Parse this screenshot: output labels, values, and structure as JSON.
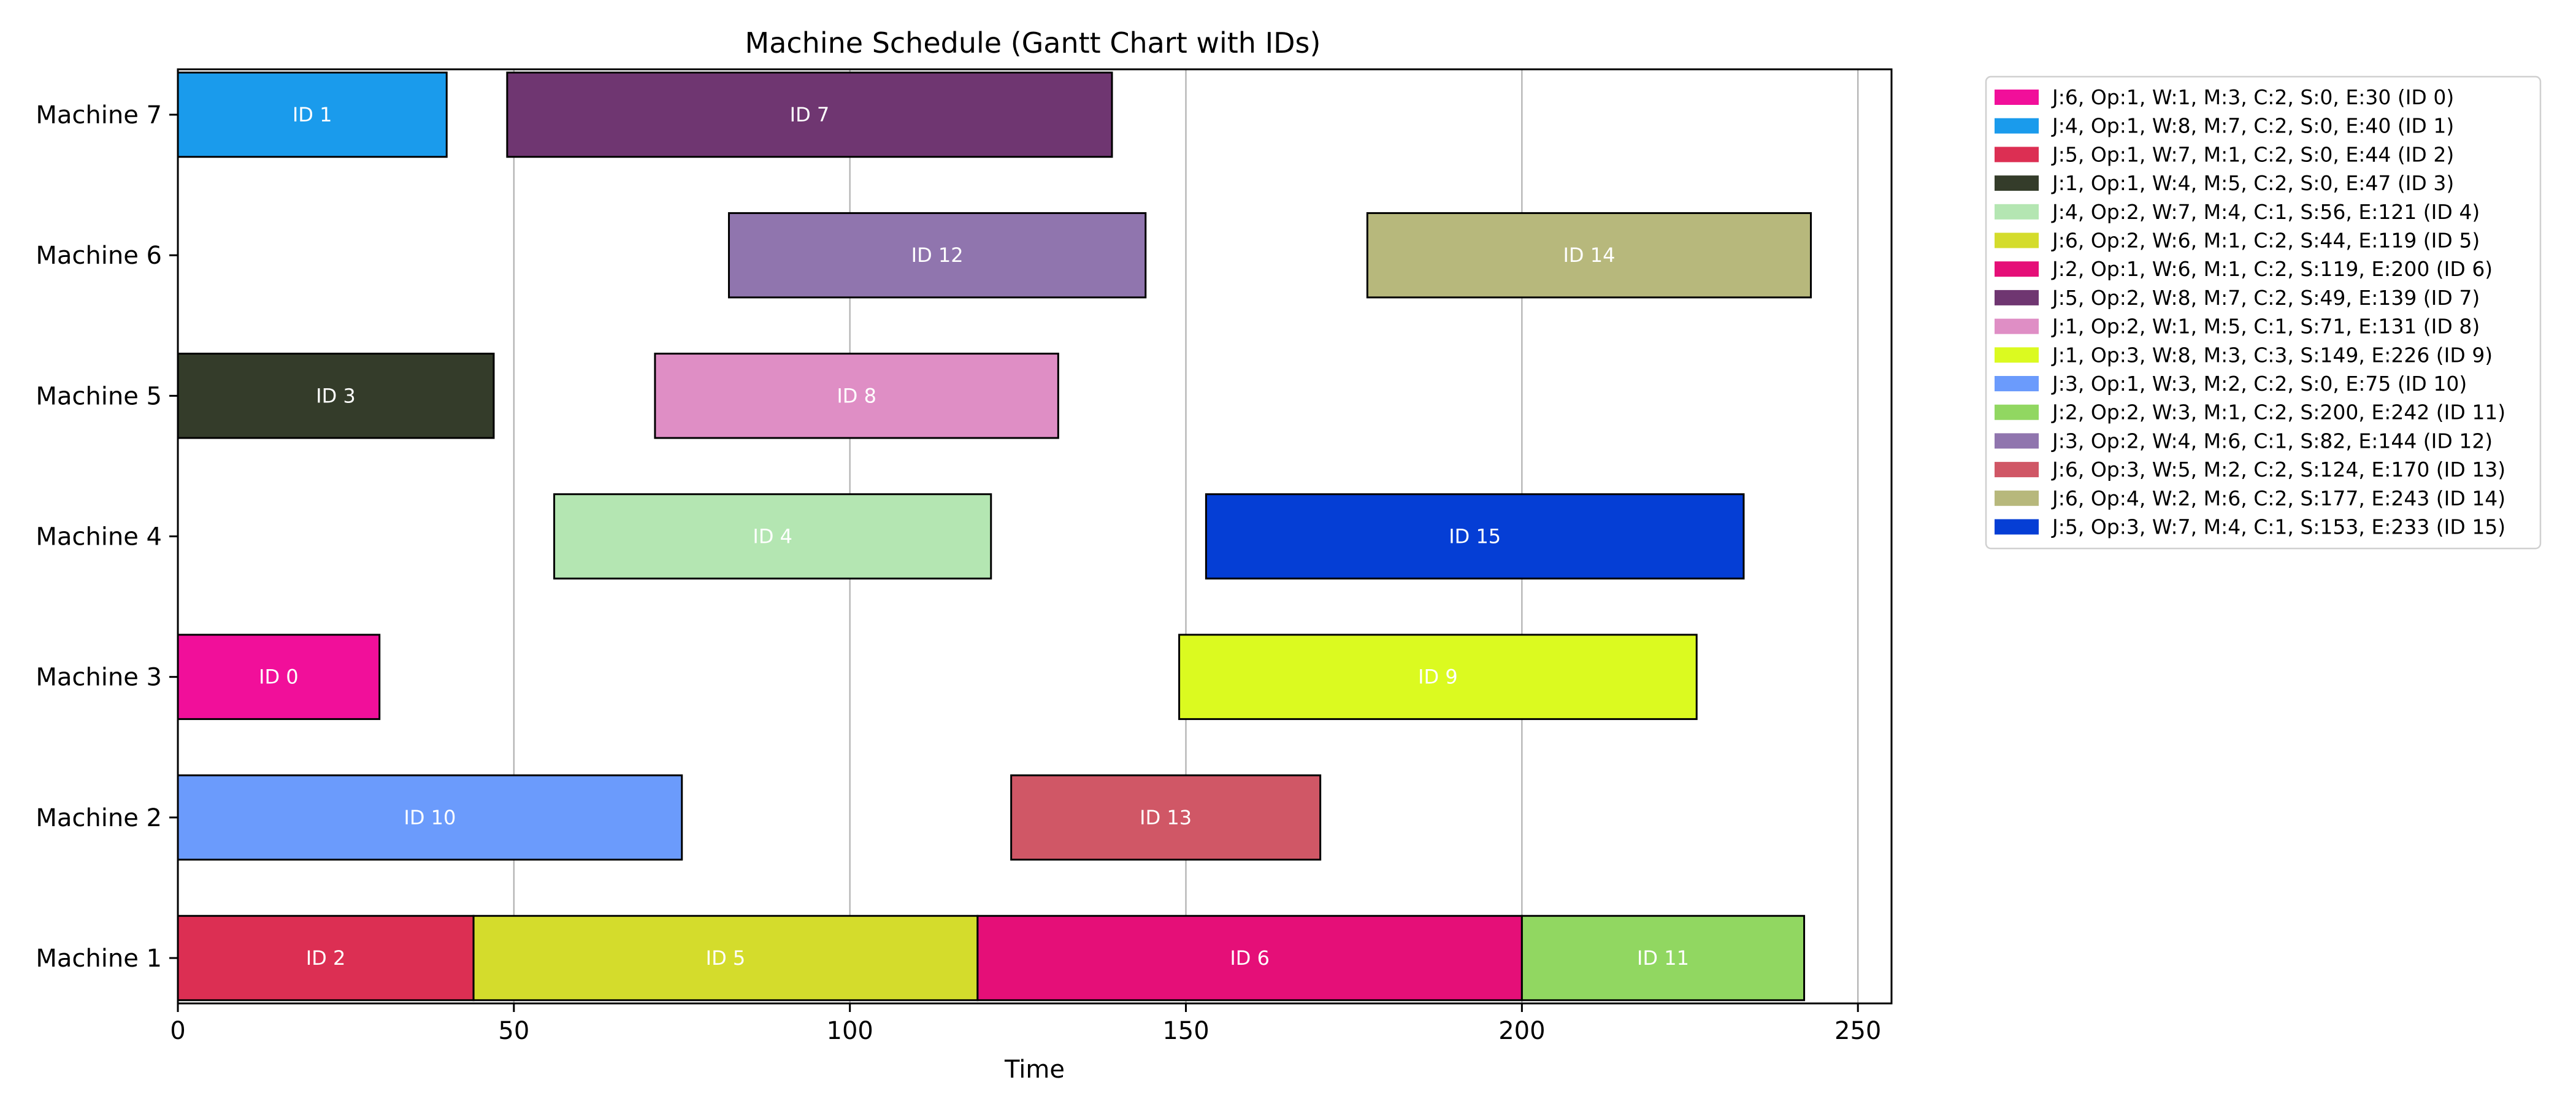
{
  "chart_data": {
    "type": "gantt",
    "title": "Machine Schedule (Gantt Chart with IDs)",
    "xlabel": "Time",
    "ylabel": "",
    "xlim": [
      0,
      255
    ],
    "xticks": [
      0,
      50,
      100,
      150,
      200,
      250
    ],
    "grid": "vertical",
    "legend_position": "outside right, top",
    "machines": [
      "Machine 1",
      "Machine 2",
      "Machine 3",
      "Machine 4",
      "Machine 5",
      "Machine 6",
      "Machine 7"
    ],
    "tasks": [
      {
        "id": 0,
        "label": "ID 0",
        "machine": "Machine 3",
        "start": 0,
        "end": 30,
        "color": "#f10f9a",
        "legend": "J:6, Op:1, W:1, M:3, C:2, S:0, E:30 (ID 0)"
      },
      {
        "id": 1,
        "label": "ID 1",
        "machine": "Machine 7",
        "start": 0,
        "end": 40,
        "color": "#1a9bec",
        "legend": "J:4, Op:1, W:8, M:7, C:2, S:0, E:40 (ID 1)"
      },
      {
        "id": 2,
        "label": "ID 2",
        "machine": "Machine 1",
        "start": 0,
        "end": 44,
        "color": "#dc2f53",
        "legend": "J:5, Op:1, W:7, M:1, C:2, S:0, E:44 (ID 2)"
      },
      {
        "id": 3,
        "label": "ID 3",
        "machine": "Machine 5",
        "start": 0,
        "end": 47,
        "color": "#343c2a",
        "legend": "J:1, Op:1, W:4, M:5, C:2, S:0, E:47 (ID 3)"
      },
      {
        "id": 4,
        "label": "ID 4",
        "machine": "Machine 4",
        "start": 56,
        "end": 121,
        "color": "#b4e6b2",
        "legend": "J:4, Op:2, W:7, M:4, C:1, S:56, E:121 (ID 4)"
      },
      {
        "id": 5,
        "label": "ID 5",
        "machine": "Machine 1",
        "start": 44,
        "end": 119,
        "color": "#d4dc2c",
        "legend": "J:6, Op:2, W:6, M:1, C:2, S:44, E:119 (ID 5)"
      },
      {
        "id": 6,
        "label": "ID 6",
        "machine": "Machine 1",
        "start": 119,
        "end": 200,
        "color": "#e50f78",
        "legend": "J:2, Op:1, W:6, M:1, C:2, S:119, E:200 (ID 6)"
      },
      {
        "id": 7,
        "label": "ID 7",
        "machine": "Machine 7",
        "start": 49,
        "end": 139,
        "color": "#6f3671",
        "legend": "J:5, Op:2, W:8, M:7, C:2, S:49, E:139 (ID 7)"
      },
      {
        "id": 8,
        "label": "ID 8",
        "machine": "Machine 5",
        "start": 71,
        "end": 131,
        "color": "#df8ec5",
        "legend": "J:1, Op:2, W:1, M:5, C:1, S:71, E:131 (ID 8)"
      },
      {
        "id": 9,
        "label": "ID 9",
        "machine": "Machine 3",
        "start": 149,
        "end": 226,
        "color": "#dbfa20",
        "legend": "J:1, Op:3, W:8, M:3, C:3, S:149, E:226 (ID 9)"
      },
      {
        "id": 10,
        "label": "ID 10",
        "machine": "Machine 2",
        "start": 0,
        "end": 75,
        "color": "#6b9bfc",
        "legend": "J:3, Op:1, W:3, M:2, C:2, S:0, E:75 (ID 10)"
      },
      {
        "id": 11,
        "label": "ID 11",
        "machine": "Machine 1",
        "start": 200,
        "end": 242,
        "color": "#91d761",
        "legend": "J:2, Op:2, W:3, M:1, C:2, S:200, E:242 (ID 11)"
      },
      {
        "id": 12,
        "label": "ID 12",
        "machine": "Machine 6",
        "start": 82,
        "end": 144,
        "color": "#9075ae",
        "legend": "J:3, Op:2, W:4, M:6, C:1, S:82, E:144 (ID 12)"
      },
      {
        "id": 13,
        "label": "ID 13",
        "machine": "Machine 2",
        "start": 124,
        "end": 170,
        "color": "#d05766",
        "legend": "J:6, Op:3, W:5, M:2, C:2, S:124, E:170 (ID 13)"
      },
      {
        "id": 14,
        "label": "ID 14",
        "machine": "Machine 6",
        "start": 177,
        "end": 243,
        "color": "#b7b87c",
        "legend": "J:6, Op:4, W:2, M:6, C:2, S:177, E:243 (ID 14)"
      },
      {
        "id": 15,
        "label": "ID 15",
        "machine": "Machine 4",
        "start": 153,
        "end": 233,
        "color": "#053ed5",
        "legend": "J:5, Op:3, W:7, M:4, C:1, S:153, E:233 (ID 15)"
      }
    ]
  }
}
